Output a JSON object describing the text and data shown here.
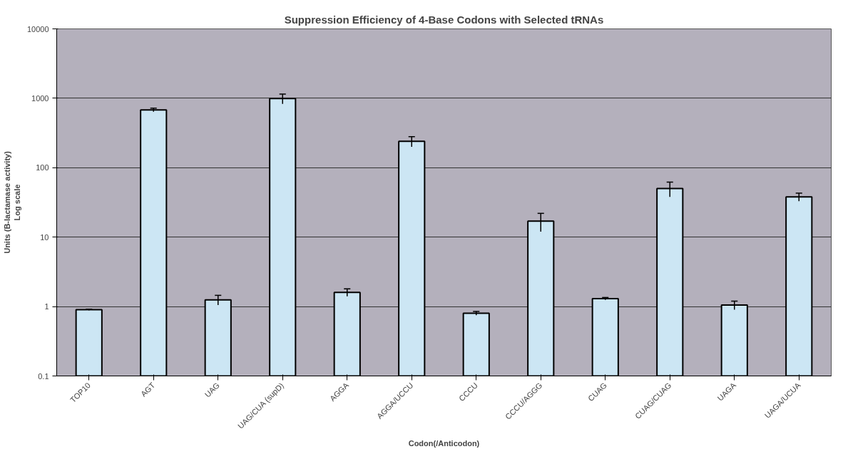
{
  "chart_data": {
    "type": "bar",
    "title": "Suppression Efficiency of 4-Base Codons with Selected tRNAs",
    "xlabel": "Codon(/Anticodon)",
    "ylabel": "Units (B-lactamase activity)\nLog scale",
    "categories": [
      "TOP10",
      "AGT",
      "UAG",
      "UAG/CUA (supD)",
      "AGGA",
      "AGGA/UCCU",
      "CCCU",
      "CCCU/AGGG",
      "CUAG",
      "CUAG/CUAG",
      "UAGA",
      "UAGA/UCUA"
    ],
    "values": [
      0.9,
      680,
      1.25,
      990,
      1.6,
      240,
      0.8,
      17,
      1.3,
      50,
      1.05,
      38
    ],
    "errors": [
      [
        0.88,
        0.92
      ],
      [
        640,
        720
      ],
      [
        1.05,
        1.45
      ],
      [
        830,
        1150
      ],
      [
        1.4,
        1.8
      ],
      [
        200,
        280
      ],
      [
        0.75,
        0.85
      ],
      [
        12,
        22
      ],
      [
        1.25,
        1.35
      ],
      [
        38,
        62
      ],
      [
        0.9,
        1.2
      ],
      [
        33,
        43
      ]
    ],
    "color": "#cce6f4",
    "log": true,
    "ylim": [
      0.1,
      10000
    ],
    "yticks": [
      0.1,
      1,
      10,
      100,
      1000,
      10000
    ],
    "grid": "y"
  }
}
